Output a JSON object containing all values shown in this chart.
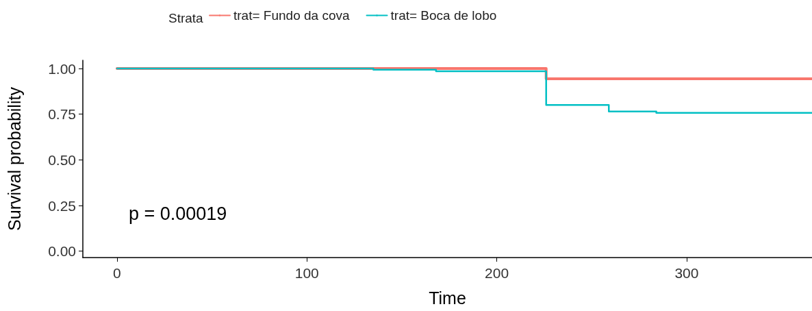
{
  "chart_data": {
    "type": "step",
    "xlabel": "Time",
    "ylabel": "Survival probability",
    "legend_title": "Strata",
    "legend": "top",
    "annotations": [
      "p = 0.00019"
    ],
    "xlim": [
      -18,
      366
    ],
    "xticks": [
      0,
      100,
      200,
      300
    ],
    "ylim": [
      -0.035,
      1.045
    ],
    "yticks": [
      {
        "value": 0,
        "label": "0.00"
      },
      {
        "value": 0.25,
        "label": "0.25"
      },
      {
        "value": 0.5,
        "label": "0.50"
      },
      {
        "value": 0.75,
        "label": "0.75"
      },
      {
        "value": 1,
        "label": "1.00"
      }
    ],
    "grid": false,
    "series": [
      {
        "name": "trat= Fundo da cova",
        "color": "#f8766d",
        "x": [
          0,
          226,
          366
        ],
        "values": [
          1,
          0.944,
          0.944
        ]
      },
      {
        "name": "trat= Boca de lobo",
        "color": "#00bfc4",
        "x": [
          0,
          135,
          168,
          226,
          259,
          284,
          366
        ],
        "values": [
          1,
          0.993,
          0.985,
          0.8,
          0.765,
          0.757,
          0.757
        ]
      }
    ]
  }
}
